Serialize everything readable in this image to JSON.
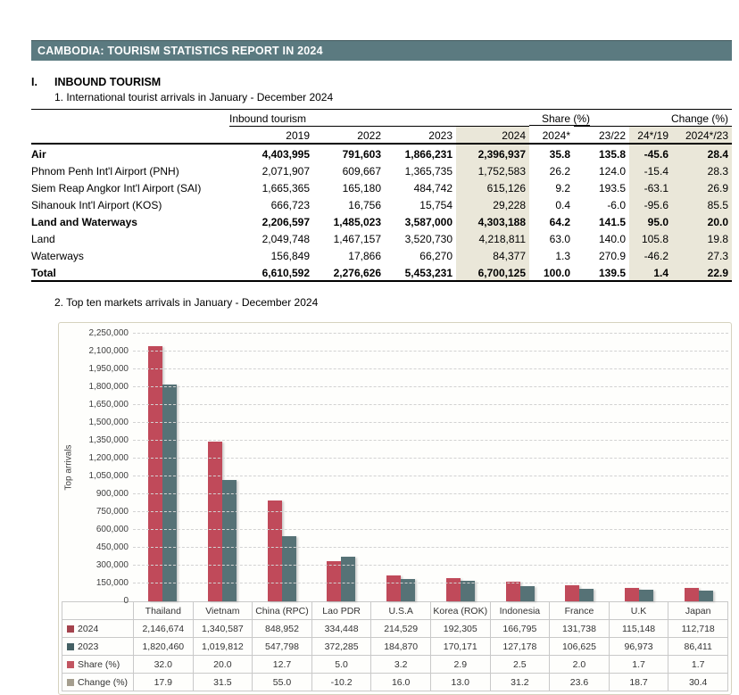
{
  "page": {
    "title_bar": "CAMBODIA: TOURISM STATISTICS REPORT IN 2024",
    "title_bar_bg": "#5b7a80"
  },
  "section1": {
    "numeral": "I.",
    "heading": "INBOUND TOURISM",
    "subtitle": "1. International tourist arrivals in January - December 2024",
    "table": {
      "group_headers": {
        "inbound": "Inbound tourism",
        "share": "Share (%)",
        "change": "Change (%)"
      },
      "columns": [
        "2019",
        "2022",
        "2023",
        "2024",
        "2024*",
        "23/22",
        "24*/19",
        "2024*/23"
      ],
      "shaded_columns": [
        3,
        6,
        7
      ],
      "shade_color": "#eae7d9",
      "rows": [
        {
          "label": "Air",
          "bold": true,
          "indent": false,
          "values": [
            "4,403,995",
            "791,603",
            "1,866,231",
            "2,396,937",
            "35.8",
            "135.8",
            "-45.6",
            "28.4"
          ]
        },
        {
          "label": "Phnom Penh Int'l Airport (PNH)",
          "bold": false,
          "indent": true,
          "values": [
            "2,071,907",
            "609,667",
            "1,365,735",
            "1,752,583",
            "26.2",
            "124.0",
            "-15.4",
            "28.3"
          ]
        },
        {
          "label": "Siem Reap Angkor Int'l Airport (SAI)",
          "bold": false,
          "indent": true,
          "values": [
            "1,665,365",
            "165,180",
            "484,742",
            "615,126",
            "9.2",
            "193.5",
            "-63.1",
            "26.9"
          ]
        },
        {
          "label": "Sihanouk Int'l Airport (KOS)",
          "bold": false,
          "indent": true,
          "values": [
            "666,723",
            "16,756",
            "15,754",
            "29,228",
            "0.4",
            "-6.0",
            "-95.6",
            "85.5"
          ]
        },
        {
          "label": "Land and Waterways",
          "bold": true,
          "indent": false,
          "values": [
            "2,206,597",
            "1,485,023",
            "3,587,000",
            "4,303,188",
            "64.2",
            "141.5",
            "95.0",
            "20.0"
          ]
        },
        {
          "label": "Land",
          "bold": false,
          "indent": true,
          "values": [
            "2,049,748",
            "1,467,157",
            "3,520,730",
            "4,218,811",
            "63.0",
            "140.0",
            "105.8",
            "19.8"
          ]
        },
        {
          "label": "Waterways",
          "bold": false,
          "indent": true,
          "values": [
            "156,849",
            "17,866",
            "66,270",
            "84,377",
            "1.3",
            "270.9",
            "-46.2",
            "27.3"
          ]
        },
        {
          "label": "Total",
          "bold": true,
          "indent": false,
          "total": true,
          "values": [
            "6,610,592",
            "2,276,626",
            "5,453,231",
            "6,700,125",
            "100.0",
            "139.5",
            "1.4",
            "22.9"
          ]
        }
      ]
    }
  },
  "section2": {
    "subtitle": "2. Top ten markets arrivals in January - December  2024"
  },
  "chart_data": {
    "type": "bar",
    "title": "Top ten markets arrivals in January - December 2024",
    "xlabel": "",
    "ylabel": "Top arrivals",
    "ylim": [
      0,
      2250000
    ],
    "ytick_step": 150000,
    "ytick_labels": [
      "0",
      "150,000",
      "300,000",
      "450,000",
      "600,000",
      "750,000",
      "900,000",
      "1,050,000",
      "1,200,000",
      "1,350,000",
      "1,500,000",
      "1,650,000",
      "1,800,000",
      "1,950,000",
      "2,100,000",
      "2,250,000"
    ],
    "grid": "horizontal-dashed",
    "legend_position": "data-table-left",
    "categories": [
      "Thailand",
      "Vietnam",
      "China (RPC)",
      "Lao PDR",
      "U.S.A",
      "Korea (ROK)",
      "Indonesia",
      "France",
      "U.K",
      "Japan"
    ],
    "series": [
      {
        "name": "2024",
        "color": "#c04a5a",
        "marker_color": "#a4434d",
        "values": [
          "2,146,674",
          "1,340,587",
          "848,952",
          "334,448",
          "214,529",
          "192,305",
          "166,795",
          "131,738",
          "115,148",
          "112,718"
        ]
      },
      {
        "name": "2023",
        "color": "#567276",
        "marker_color": "#446064",
        "values": [
          "1,820,460",
          "1,019,812",
          "547,798",
          "372,285",
          "184,870",
          "170,171",
          "127,178",
          "106,625",
          "96,973",
          "86,411"
        ]
      }
    ],
    "summary_rows": [
      {
        "name": "Share (%)",
        "marker_color": "#c25561",
        "values": [
          "32.0",
          "20.0",
          "12.7",
          "5.0",
          "3.2",
          "2.9",
          "2.5",
          "2.0",
          "1.7",
          "1.7"
        ]
      },
      {
        "name": "Change (%)",
        "marker_color": "#a59e8e",
        "values": [
          "17.9",
          "31.5",
          "55.0",
          "-10.2",
          "16.0",
          "13.0",
          "31.2",
          "23.6",
          "18.7",
          "30.4"
        ]
      }
    ]
  }
}
